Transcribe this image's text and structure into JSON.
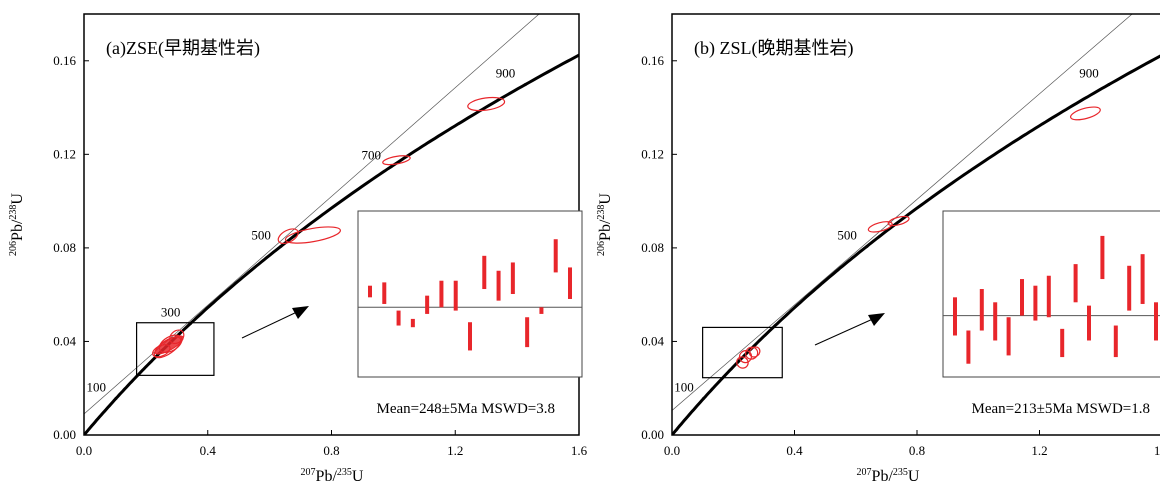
{
  "chart_data": [
    {
      "type": "scatter",
      "subtype": "concordia",
      "title": "(a)ZSE(早期基性岩)",
      "xlabel_parts": {
        "sup": "207",
        "base": "Pb/",
        "sup2": "235",
        "end": "U"
      },
      "ylabel_parts": {
        "sup": "206",
        "base": "Pb/",
        "sup2": "238",
        "end": "U"
      },
      "xlim": [
        0,
        1.6
      ],
      "ylim": [
        0,
        0.18
      ],
      "xticks": [
        "0.0",
        "0.4",
        "0.8",
        "1.2",
        "1.6"
      ],
      "yticks": [
        "0.00",
        "0.04",
        "0.08",
        "0.12",
        "0.16"
      ],
      "age_labels": [
        {
          "text": "100",
          "age": 100
        },
        {
          "text": "300",
          "age": 300
        },
        {
          "text": "500",
          "age": 500
        },
        {
          "text": "700",
          "age": 700
        },
        {
          "text": "900",
          "age": 900
        }
      ],
      "discordia": {
        "x": [
          0,
          1.6
        ],
        "y": [
          0.009,
          0.195
        ]
      },
      "ellipses": [
        {
          "x": 0.66,
          "y": 0.085,
          "rx": 0.035,
          "ry": 0.0025,
          "angle": -28
        },
        {
          "x": 0.74,
          "y": 0.0855,
          "rx": 0.09,
          "ry": 0.0028,
          "angle": -10
        },
        {
          "x": 1.01,
          "y": 0.1175,
          "rx": 0.045,
          "ry": 0.0016,
          "angle": -10
        },
        {
          "x": 1.3,
          "y": 0.1415,
          "rx": 0.06,
          "ry": 0.0026,
          "angle": -8
        },
        {
          "x": 0.28,
          "y": 0.039,
          "rx": 0.04,
          "ry": 0.003,
          "angle": -30
        },
        {
          "x": 0.27,
          "y": 0.0375,
          "rx": 0.05,
          "ry": 0.0028,
          "angle": -35
        },
        {
          "x": 0.3,
          "y": 0.042,
          "rx": 0.025,
          "ry": 0.0025,
          "angle": -40
        },
        {
          "x": 0.25,
          "y": 0.036,
          "rx": 0.03,
          "ry": 0.0022,
          "angle": -25
        }
      ],
      "zoom_box": {
        "x0": 0.17,
        "x1": 0.42,
        "y0": 0.0255,
        "y1": 0.048
      },
      "inset": {
        "bars": [
          {
            "lo": 0.48,
            "hi": 0.55
          },
          {
            "lo": 0.44,
            "hi": 0.57
          },
          {
            "lo": 0.31,
            "hi": 0.4
          },
          {
            "lo": 0.3,
            "hi": 0.35
          },
          {
            "lo": 0.38,
            "hi": 0.49
          },
          {
            "lo": 0.42,
            "hi": 0.58
          },
          {
            "lo": 0.4,
            "hi": 0.58
          },
          {
            "lo": 0.16,
            "hi": 0.33
          },
          {
            "lo": 0.53,
            "hi": 0.73
          },
          {
            "lo": 0.46,
            "hi": 0.64
          },
          {
            "lo": 0.5,
            "hi": 0.69
          },
          {
            "lo": 0.18,
            "hi": 0.36
          },
          {
            "lo": 0.38,
            "hi": 0.42
          },
          {
            "lo": 0.63,
            "hi": 0.83
          },
          {
            "lo": 0.47,
            "hi": 0.66
          }
        ],
        "mean_level": 0.42
      },
      "stats": "Mean=248±5Ma  MSWD=3.8"
    },
    {
      "type": "scatter",
      "subtype": "concordia",
      "title": "(b) ZSL(晚期基性岩)",
      "xlabel_parts": {
        "sup": "207",
        "base": "Pb/",
        "sup2": "235",
        "end": "U"
      },
      "ylabel_parts": {
        "sup": "206",
        "base": "Pb/",
        "sup2": "238",
        "end": "U"
      },
      "xlim": [
        0,
        1.6
      ],
      "ylim": [
        0,
        0.18
      ],
      "xticks": [
        "0.0",
        "0.4",
        "0.8",
        "1.2",
        "1.6"
      ],
      "yticks": [
        "0.00",
        "0.04",
        "0.08",
        "0.12",
        "0.16"
      ],
      "age_labels": [
        {
          "text": "100",
          "age": 100
        },
        {
          "text": "500",
          "age": 500
        },
        {
          "text": "900",
          "age": 900
        }
      ],
      "discordia": {
        "x": [
          0,
          1.6
        ],
        "y": [
          0.0105,
          0.191
        ]
      },
      "ellipses": [
        {
          "x": 0.68,
          "y": 0.089,
          "rx": 0.04,
          "ry": 0.0018,
          "angle": -15
        },
        {
          "x": 0.74,
          "y": 0.0915,
          "rx": 0.035,
          "ry": 0.0016,
          "angle": -15
        },
        {
          "x": 1.35,
          "y": 0.1375,
          "rx": 0.05,
          "ry": 0.0022,
          "angle": -15
        },
        {
          "x": 0.23,
          "y": 0.031,
          "rx": 0.018,
          "ry": 0.0025,
          "angle": -50
        },
        {
          "x": 0.24,
          "y": 0.0335,
          "rx": 0.02,
          "ry": 0.0025,
          "angle": -45
        },
        {
          "x": 0.26,
          "y": 0.035,
          "rx": 0.02,
          "ry": 0.0025,
          "angle": -40
        },
        {
          "x": 0.27,
          "y": 0.0355,
          "rx": 0.018,
          "ry": 0.002,
          "angle": -40
        }
      ],
      "zoom_box": {
        "x0": 0.1,
        "x1": 0.36,
        "y0": 0.0245,
        "y1": 0.046
      },
      "inset": {
        "bars": [
          {
            "lo": 0.25,
            "hi": 0.48
          },
          {
            "lo": 0.08,
            "hi": 0.28
          },
          {
            "lo": 0.28,
            "hi": 0.53
          },
          {
            "lo": 0.22,
            "hi": 0.45
          },
          {
            "lo": 0.13,
            "hi": 0.36
          },
          {
            "lo": 0.37,
            "hi": 0.59
          },
          {
            "lo": 0.34,
            "hi": 0.55
          },
          {
            "lo": 0.36,
            "hi": 0.61
          },
          {
            "lo": 0.12,
            "hi": 0.29
          },
          {
            "lo": 0.45,
            "hi": 0.68
          },
          {
            "lo": 0.22,
            "hi": 0.43
          },
          {
            "lo": 0.59,
            "hi": 0.85
          },
          {
            "lo": 0.12,
            "hi": 0.31
          },
          {
            "lo": 0.4,
            "hi": 0.67
          },
          {
            "lo": 0.44,
            "hi": 0.74
          },
          {
            "lo": 0.22,
            "hi": 0.45
          }
        ],
        "mean_level": 0.37
      },
      "stats": "Mean=213±5Ma  MSWD=1.8"
    }
  ]
}
